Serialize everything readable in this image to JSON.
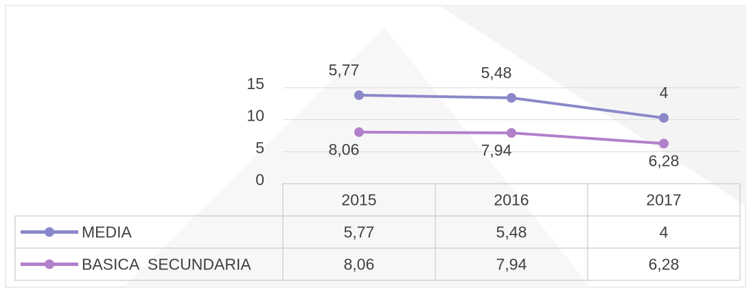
{
  "chart_data": {
    "type": "line",
    "stacked": true,
    "categories": [
      "2015",
      "2016",
      "2017"
    ],
    "series": [
      {
        "name": "MEDIA",
        "color": "#8b88c9",
        "values": [
          5.77,
          5.48,
          4
        ],
        "value_labels": [
          "5,77",
          "5,48",
          "4"
        ]
      },
      {
        "name": "BASICA  SECUNDARIA",
        "color": "#b27fca",
        "values": [
          8.06,
          7.94,
          6.28
        ],
        "value_labels": [
          "8,06",
          "7,94",
          "6,28"
        ]
      }
    ],
    "stack_order": [
      1,
      0
    ],
    "ylim": [
      0,
      15
    ],
    "yticks": [
      0,
      5,
      10,
      15
    ],
    "grid": true,
    "data_table": true
  }
}
